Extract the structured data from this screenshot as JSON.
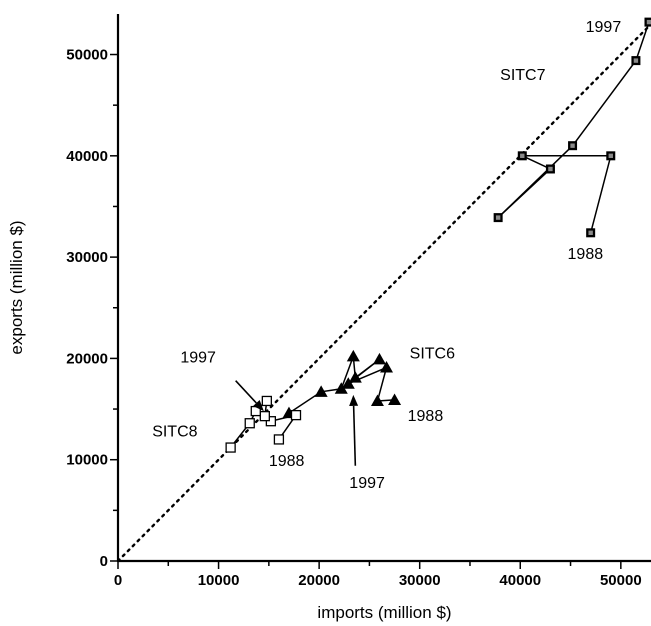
{
  "chart_data": {
    "type": "scatter",
    "title": "",
    "xlabel": "imports (million $)",
    "ylabel": "exports (million $)",
    "xlim": [
      0,
      53000
    ],
    "ylim": [
      0,
      54000
    ],
    "x_ticks": [
      "0",
      "10000",
      "20000",
      "30000",
      "40000",
      "50000"
    ],
    "y_ticks": [
      "0",
      "10000",
      "20000",
      "30000",
      "40000",
      "50000"
    ],
    "grid": false,
    "legend": "none",
    "reference_line": {
      "from": [
        0,
        0
      ],
      "to": [
        53000,
        53000
      ],
      "style": "dotted"
    },
    "series": [
      {
        "name": "SITC7",
        "marker": "filled-square",
        "points": [
          {
            "x": 47000,
            "y": 32400
          },
          {
            "x": 49000,
            "y": 40000
          },
          {
            "x": 40200,
            "y": 40000
          },
          {
            "x": 43000,
            "y": 38700
          },
          {
            "x": 37800,
            "y": 33900
          },
          {
            "x": 45200,
            "y": 41000
          },
          {
            "x": 51500,
            "y": 49400
          },
          {
            "x": 52800,
            "y": 53200
          }
        ]
      },
      {
        "name": "SITC6",
        "marker": "filled-triangle",
        "points": [
          {
            "x": 27500,
            "y": 15900
          },
          {
            "x": 25800,
            "y": 15800
          },
          {
            "x": 26700,
            "y": 19100
          },
          {
            "x": 22900,
            "y": 17500
          },
          {
            "x": 26000,
            "y": 19900
          },
          {
            "x": 23600,
            "y": 18100
          },
          {
            "x": 23400,
            "y": 20200
          },
          {
            "x": 22200,
            "y": 17000
          },
          {
            "x": 20200,
            "y": 16700
          },
          {
            "x": 17000,
            "y": 14600
          }
        ]
      },
      {
        "name": "SITC8",
        "marker": "open-square",
        "points": [
          {
            "x": 16000,
            "y": 12000
          },
          {
            "x": 17700,
            "y": 14400
          },
          {
            "x": 15200,
            "y": 13800
          },
          {
            "x": 14600,
            "y": 14300
          },
          {
            "x": 14800,
            "y": 15800
          },
          {
            "x": 13700,
            "y": 14800
          },
          {
            "x": 13100,
            "y": 13600
          },
          {
            "x": 11200,
            "y": 11200
          }
        ]
      }
    ],
    "annotations": [
      {
        "text": "SITC7",
        "x": 38000,
        "y": 47500
      },
      {
        "text": "1997",
        "x": 46500,
        "y": 52200
      },
      {
        "text": "1988",
        "x": 44700,
        "y": 29800
      },
      {
        "text": "SITC6",
        "x": 29000,
        "y": 20000
      },
      {
        "text": "1988",
        "x": 28800,
        "y": 13800
      },
      {
        "text": "1997",
        "x": 23000,
        "y": 7200
      },
      {
        "text": "1997",
        "x": 6200,
        "y": 19600
      },
      {
        "text": "SITC8",
        "x": 3400,
        "y": 12300
      },
      {
        "text": "1988",
        "x": 15000,
        "y": 9400
      }
    ],
    "arrows": [
      {
        "from": [
          11700,
          17800
        ],
        "to": [
          14500,
          14800
        ]
      },
      {
        "from": [
          23600,
          9400
        ],
        "to": [
          23400,
          16400
        ]
      }
    ]
  }
}
